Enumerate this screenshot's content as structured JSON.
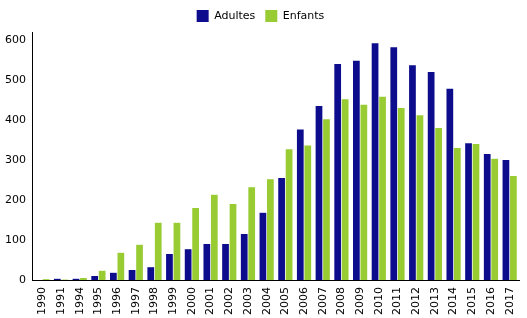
{
  "chart_data": {
    "type": "bar",
    "categories": [
      "1990",
      "1991",
      "1994",
      "1995",
      "1996",
      "1997",
      "1998",
      "1999",
      "2000",
      "2001",
      "2002",
      "2003",
      "2004",
      "2005",
      "2006",
      "2007",
      "2008",
      "2009",
      "2010",
      "2011",
      "2012",
      "2013",
      "2014",
      "2015",
      "2016",
      "2017"
    ],
    "series": [
      {
        "name": "Adultes",
        "color": "#0c0c8c",
        "values": [
          0,
          3,
          3,
          10,
          18,
          25,
          32,
          65,
          77,
          90,
          90,
          115,
          168,
          255,
          376,
          435,
          540,
          548,
          592,
          582,
          537,
          520,
          478,
          342,
          315,
          300
        ]
      },
      {
        "name": "Enfants",
        "color": "#99cc33",
        "values": [
          2,
          1,
          5,
          23,
          68,
          88,
          143,
          143,
          180,
          213,
          190,
          232,
          252,
          327,
          336,
          402,
          452,
          438,
          458,
          430,
          412,
          380,
          330,
          340,
          303,
          260
        ]
      }
    ],
    "ylim": [
      0,
      620
    ],
    "yticks": [
      0,
      100,
      200,
      300,
      400,
      500,
      600
    ],
    "grid": false,
    "legend": "top"
  }
}
